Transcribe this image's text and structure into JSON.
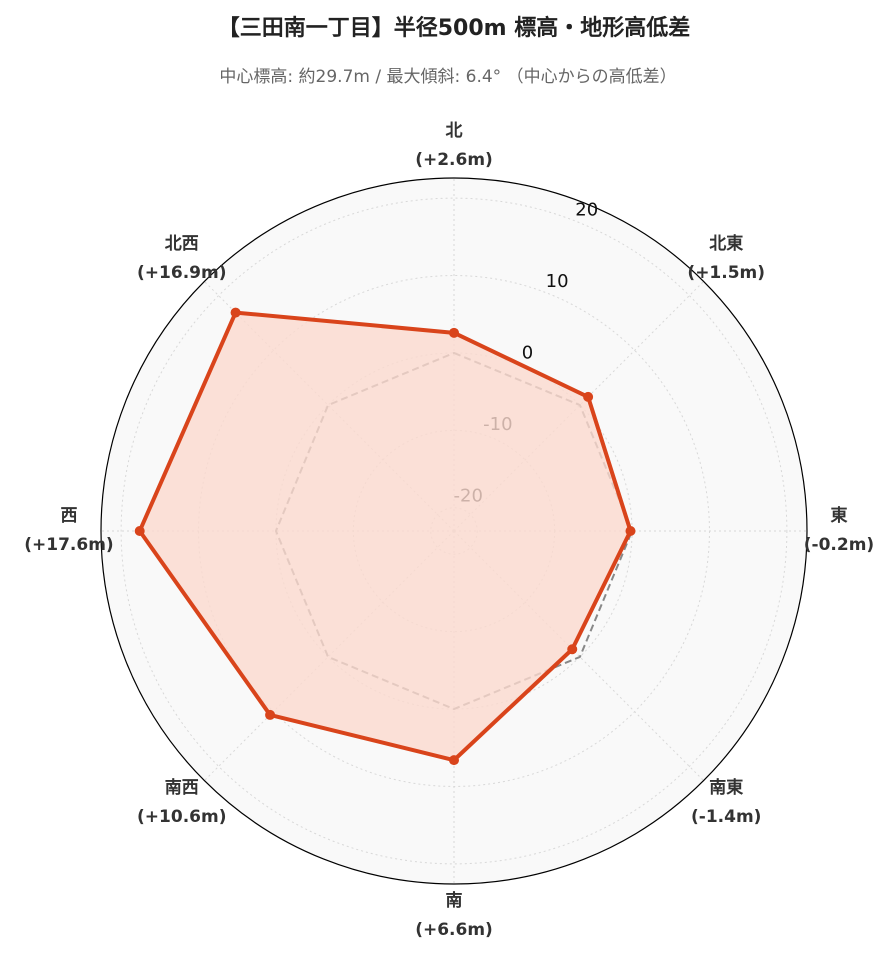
{
  "chart_data": {
    "type": "radar",
    "title": "【三田南一丁目】半径500m 標高・地形高低差",
    "subtitle": "中心標高: 約29.7m / 最大傾斜: 6.4° （中心からの高低差）",
    "categories": [
      "北",
      "北東",
      "東",
      "南東",
      "南",
      "南西",
      "西",
      "北西"
    ],
    "series": [
      {
        "color": "#d9441b",
        "fill": "#fbd9ce",
        "values": [
          2.6,
          1.5,
          -0.2,
          -1.4,
          6.6,
          10.6,
          17.6,
          16.9
        ],
        "value_labels": [
          "(+2.6m)",
          "(+1.5m)",
          "(-0.2m)",
          "(-1.4m)",
          "(+6.6m)",
          "(+10.6m)",
          "(+17.6m)",
          "(+16.9m)"
        ]
      },
      {
        "color": "#888888",
        "dashed": true,
        "values": [
          0,
          0,
          0,
          0,
          0,
          0,
          0,
          0
        ]
      }
    ],
    "ylim": [
      -23,
      22.6
    ],
    "yticks": [
      -20,
      -10,
      0,
      10,
      20
    ],
    "grid": true
  }
}
